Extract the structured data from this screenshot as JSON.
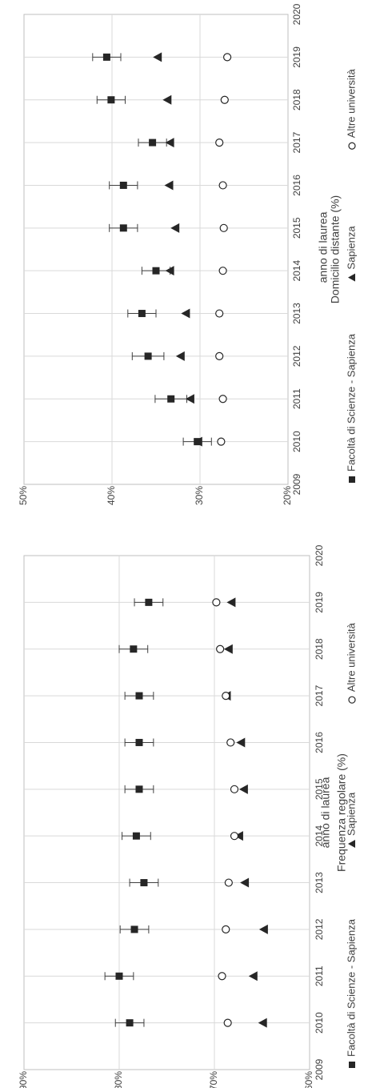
{
  "chart_data": [
    {
      "type": "scatter",
      "title": "",
      "xlabel": "anno di laurea",
      "ylabel": "Frequenza regolare (%)",
      "xlim": [
        2009,
        2020
      ],
      "ylim": [
        60,
        90
      ],
      "xticks": [
        "2009",
        "2010",
        "2011",
        "2012",
        "2013",
        "2014",
        "2015",
        "2016",
        "2017",
        "2018",
        "2019",
        "2020"
      ],
      "yticks": [
        "60%",
        "70%",
        "80%",
        "90%"
      ],
      "grid": true,
      "legend_position": "bottom",
      "x": [
        2010,
        2011,
        2012,
        2013,
        2014,
        2015,
        2016,
        2017,
        2018,
        2019
      ],
      "series": [
        {
          "name": "Facoltà di Scienze - Sapienza",
          "marker": "square",
          "values": [
            78.9,
            80.0,
            78.4,
            77.4,
            78.2,
            77.9,
            77.9,
            77.9,
            78.5,
            76.9
          ],
          "error": [
            1.5,
            1.5,
            1.5,
            1.5,
            1.5,
            1.5,
            1.5,
            1.5,
            1.5,
            1.5
          ]
        },
        {
          "name": "Sapienza",
          "marker": "triangle",
          "values": [
            64.9,
            65.9,
            64.8,
            66.8,
            67.4,
            66.9,
            67.2,
            68.7,
            68.5,
            68.2
          ]
        },
        {
          "name": "Altre università",
          "marker": "circle",
          "values": [
            68.6,
            69.2,
            68.8,
            68.5,
            67.9,
            67.9,
            68.3,
            68.8,
            69.4,
            69.8
          ]
        }
      ]
    },
    {
      "type": "scatter",
      "title": "",
      "xlabel": "anno di laurea",
      "ylabel": "Domicilio distante (%)",
      "xlim": [
        2009,
        2020
      ],
      "ylim": [
        20,
        50
      ],
      "xticks": [
        "2009",
        "2010",
        "2011",
        "2012",
        "2013",
        "2014",
        "2015",
        "2016",
        "2017",
        "2018",
        "2019",
        "2020"
      ],
      "yticks": [
        "20%",
        "30%",
        "40%",
        "50%"
      ],
      "grid": true,
      "legend_position": "bottom",
      "x": [
        2010,
        2011,
        2012,
        2013,
        2014,
        2015,
        2016,
        2017,
        2018,
        2019
      ],
      "series": [
        {
          "name": "Facoltà di Scienze - Sapienza",
          "marker": "square",
          "values": [
            30.3,
            33.3,
            35.9,
            36.6,
            35.0,
            38.7,
            38.7,
            35.4,
            40.1,
            40.6
          ],
          "error": [
            1.6,
            1.8,
            1.8,
            1.6,
            1.6,
            1.6,
            1.6,
            1.6,
            1.6,
            1.6
          ]
        },
        {
          "name": "Sapienza",
          "marker": "triangle",
          "values": [
            30.2,
            31.1,
            32.2,
            31.6,
            33.4,
            32.8,
            33.5,
            33.4,
            33.7,
            34.8
          ]
        },
        {
          "name": "Altre università",
          "marker": "circle",
          "values": [
            27.6,
            27.4,
            27.8,
            27.8,
            27.4,
            27.3,
            27.4,
            27.8,
            27.2,
            26.9
          ]
        }
      ]
    }
  ]
}
